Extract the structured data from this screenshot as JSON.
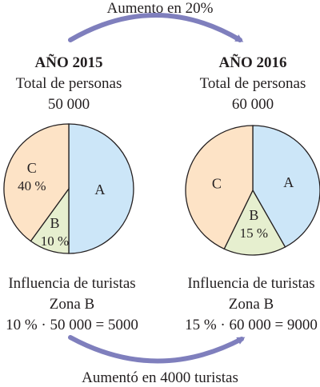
{
  "top_arrow_label": "Aumento en 20%",
  "bottom_arrow_label": "Aumentó en 4000 turistas",
  "colors": {
    "slice_a": "#cce6f8",
    "slice_b": "#e6efcf",
    "slice_c": "#fde3c6",
    "outline": "#231f20",
    "arrow": "#7f7fbd"
  },
  "chart_data": [
    {
      "type": "pie",
      "title": "AÑO 2015",
      "subtitle": "Total de personas",
      "total": "50 000",
      "slices": [
        {
          "label": "A",
          "value": 50,
          "value_label": ""
        },
        {
          "label": "B",
          "value": 10,
          "value_label": "10 %"
        },
        {
          "label": "C",
          "value": 40,
          "value_label": "40 %"
        }
      ],
      "caption_lines": [
        "Influencia de turistas",
        "Zona B",
        "10 % · 50 000 = 5000"
      ]
    },
    {
      "type": "pie",
      "title": "AÑO 2016",
      "subtitle": "Total de personas",
      "total": "60 000",
      "slices": [
        {
          "label": "A",
          "value": 42,
          "value_label": ""
        },
        {
          "label": "B",
          "value": 15,
          "value_label": "15 %"
        },
        {
          "label": "C",
          "value": 43,
          "value_label": ""
        }
      ],
      "caption_lines": [
        "Influencia de turistas",
        "Zona B",
        "15 % · 60 000 = 9000"
      ]
    }
  ]
}
